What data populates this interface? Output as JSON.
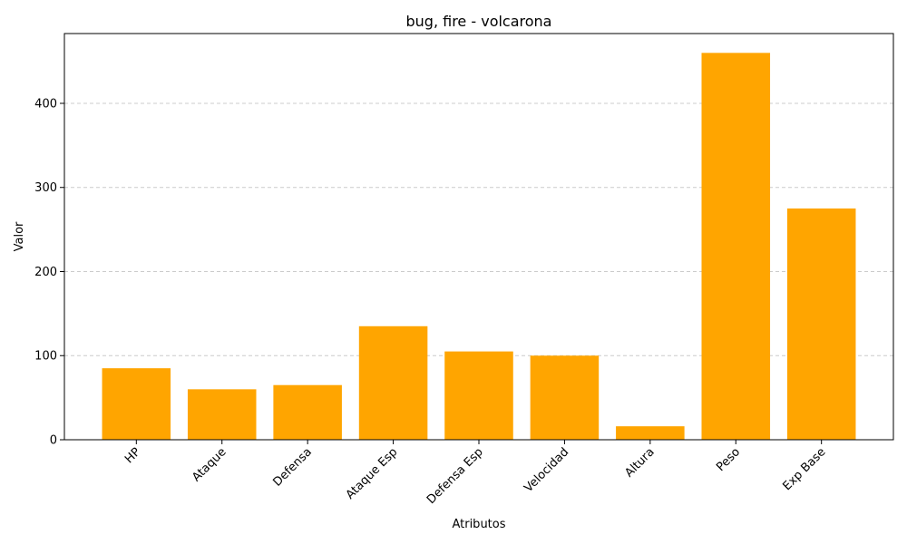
{
  "chart_data": {
    "type": "bar",
    "title": "bug, fire - volcarona",
    "xlabel": "Atributos",
    "ylabel": "Valor",
    "categories": [
      "HP",
      "Ataque",
      "Defensa",
      "Ataque Esp",
      "Defensa Esp",
      "Velocidad",
      "Altura",
      "Peso",
      "Exp Base"
    ],
    "values": [
      85,
      60,
      65,
      135,
      105,
      100,
      16,
      460,
      275
    ],
    "ylim": [
      0,
      483
    ],
    "yticks": [
      0,
      100,
      200,
      300,
      400
    ],
    "bar_color": "#FFA500",
    "grid": "y-dashed",
    "xtick_rotation": 45
  }
}
